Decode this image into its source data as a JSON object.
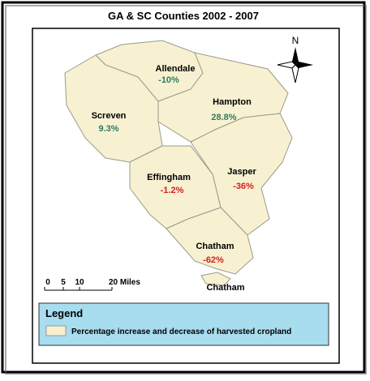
{
  "title": "GA & SC Counties 2002 - 2007",
  "north": "N",
  "counties": [
    {
      "name": "Allendale",
      "change": "-10%",
      "color": "#2e7d5b"
    },
    {
      "name": "Hampton",
      "change": "28.8%",
      "color": "#2e7d5b"
    },
    {
      "name": "Screven",
      "change": "9.3%",
      "color": "#2e7d5b"
    },
    {
      "name": "Effingham",
      "change": "-1.2%",
      "color": "#d42020"
    },
    {
      "name": "Jasper",
      "change": "-36%",
      "color": "#d42020"
    },
    {
      "name": "Chatham",
      "change": "-62%",
      "color": "#d42020"
    },
    {
      "name": "Chatham"
    }
  ],
  "scale_bar": {
    "labels": [
      "0",
      "5",
      "10",
      "20 Miles"
    ]
  },
  "legend": {
    "title": "Legend",
    "item": "Percentage increase and decrease of harvested cropland"
  }
}
